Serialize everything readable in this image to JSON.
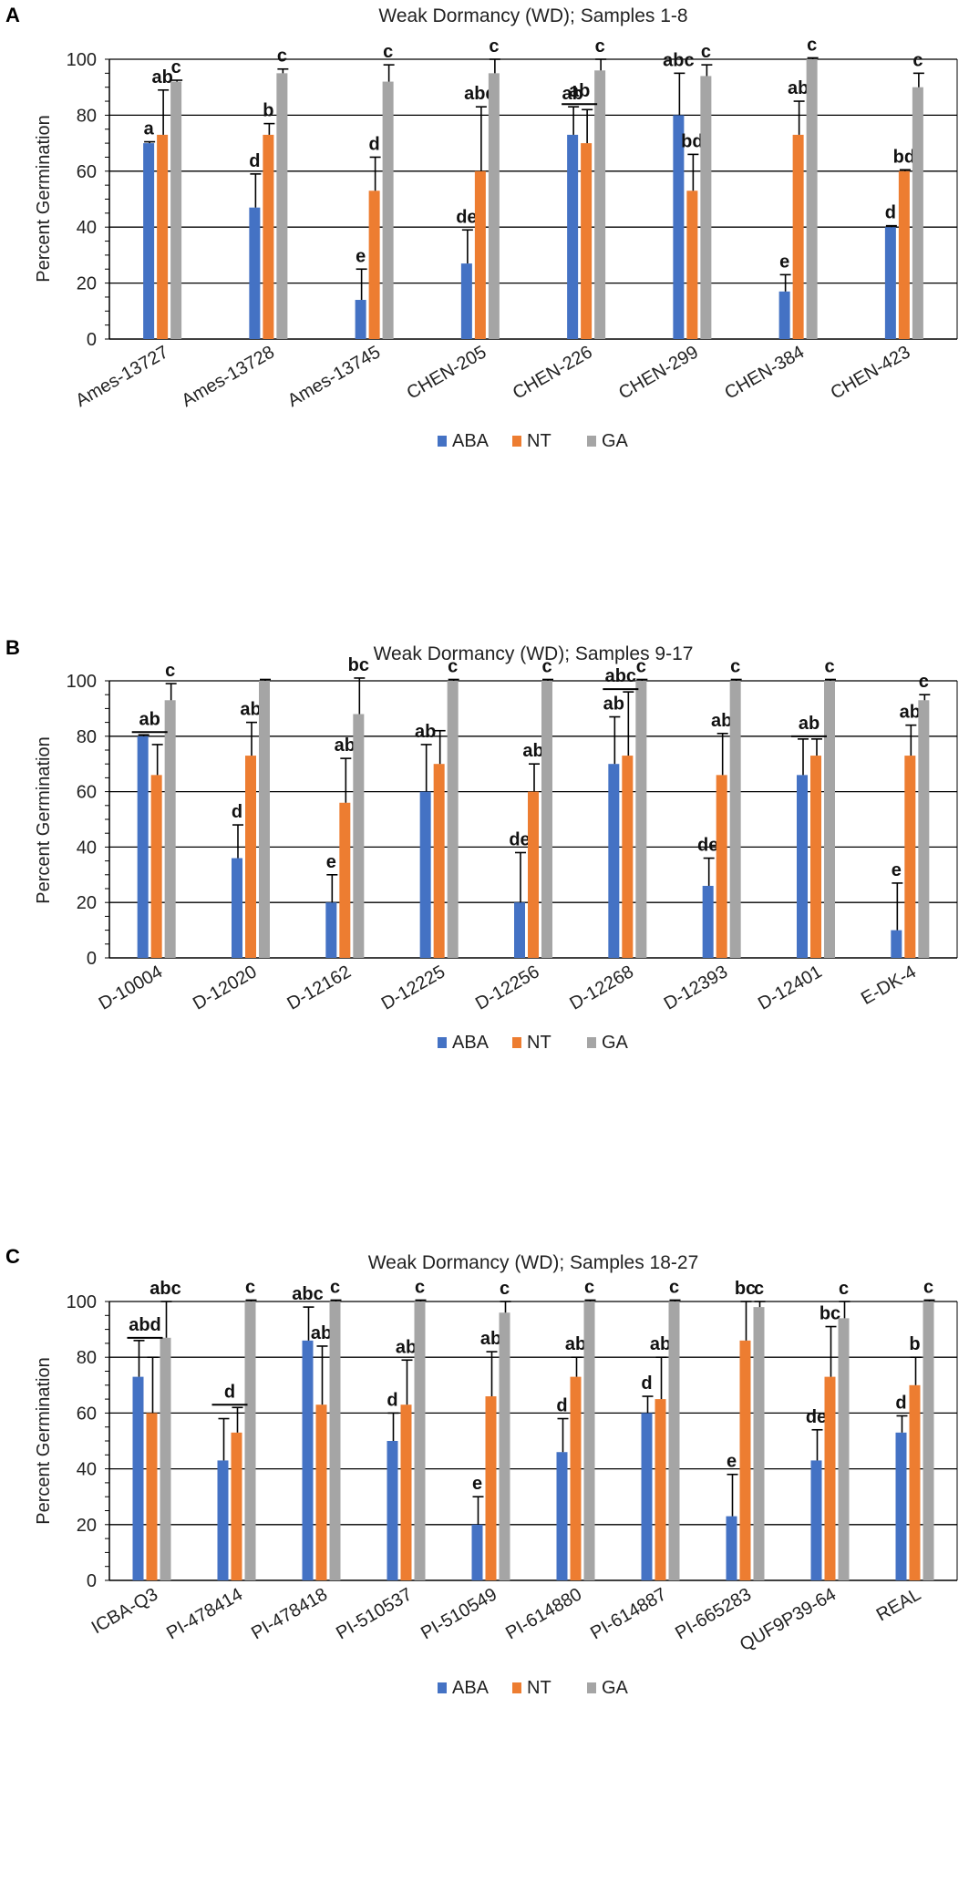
{
  "colors": {
    "ABA": "#4472c4",
    "NT": "#ed7d31",
    "GA": "#a5a5a5"
  },
  "chart_data": [
    {
      "type": "bar",
      "panel_label": "A",
      "title": "Weak Dormancy (WD); Samples 1-8",
      "xlabel": "",
      "ylabel": "Percent Germination",
      "ylim": [
        0,
        100
      ],
      "yticks": [
        0,
        20,
        40,
        60,
        80,
        100
      ],
      "grid": true,
      "legend_position": "bottom",
      "categories": [
        "Ames-13727",
        "Ames-13728",
        "Ames-13745",
        "CHEN-205",
        "CHEN-226",
        "CHEN-299",
        "CHEN-384",
        "CHEN-423"
      ],
      "series": [
        {
          "name": "ABA",
          "values": [
            70,
            47,
            14,
            27,
            73,
            80,
            17,
            40
          ],
          "errors": [
            0.5,
            12,
            11,
            12,
            10,
            15,
            6,
            0.5
          ],
          "labels": [
            "a",
            "d",
            "e",
            "de",
            "ab",
            "abc",
            "e",
            "d"
          ]
        },
        {
          "name": "NT",
          "values": [
            73,
            73,
            53,
            60,
            70,
            53,
            73,
            60
          ],
          "errors": [
            16,
            4,
            12,
            23,
            12,
            13,
            12,
            0.5
          ],
          "labels": [
            "ab",
            "b",
            "d",
            "abd",
            "",
            "bd",
            "ab",
            "bd"
          ]
        },
        {
          "name": "GA",
          "values": [
            92,
            95,
            92,
            95,
            96,
            94,
            100,
            90
          ],
          "errors": [
            0.5,
            1.5,
            6,
            5,
            4,
            4,
            0.5,
            5
          ],
          "labels": [
            "c",
            "c",
            "c",
            "c",
            "c",
            "c",
            "c",
            "c"
          ]
        }
      ],
      "spans": [
        {
          "category_index": 4,
          "label": "ab"
        }
      ]
    },
    {
      "type": "bar",
      "panel_label": "B",
      "title": "Weak Dormancy (WD); Samples 9-17",
      "xlabel": "",
      "ylabel": "Percent Germination",
      "ylim": [
        0,
        100
      ],
      "yticks": [
        0,
        20,
        40,
        60,
        80,
        100
      ],
      "grid": true,
      "legend_position": "bottom",
      "categories": [
        "D-10004",
        "D-12020",
        "D-12162",
        "D-12225",
        "D-12256",
        "D-12268",
        "D-12393",
        "D-12401",
        "E-DK-4"
      ],
      "series": [
        {
          "name": "ABA",
          "values": [
            80,
            36,
            20,
            60,
            20,
            70,
            26,
            66,
            10
          ],
          "errors": [
            0.5,
            12,
            10,
            17,
            18,
            17,
            10,
            13,
            17
          ],
          "labels": [
            "",
            "d",
            "e",
            "ab",
            "de",
            "ab",
            "de",
            "",
            "e"
          ]
        },
        {
          "name": "NT",
          "values": [
            66,
            73,
            56,
            70,
            60,
            73,
            66,
            73,
            73
          ],
          "errors": [
            11,
            12,
            16,
            12,
            10,
            23,
            15,
            6,
            11
          ],
          "labels": [
            "",
            "ab",
            "ab",
            "",
            "ab",
            "",
            "ab",
            "",
            "ab"
          ]
        },
        {
          "name": "GA",
          "values": [
            93,
            100,
            88,
            100,
            100,
            100,
            100,
            100,
            93
          ],
          "errors": [
            6,
            0.5,
            13,
            0.5,
            0.5,
            0.5,
            0.5,
            0.5,
            2
          ],
          "labels": [
            "c",
            "",
            "bc",
            "c",
            "c",
            "c",
            "c",
            "c",
            "c"
          ]
        }
      ],
      "spans": [
        {
          "category_index": 0,
          "label": "ab"
        },
        {
          "category_index": 5,
          "label": "abc"
        },
        {
          "category_index": 7,
          "label": "ab"
        }
      ]
    },
    {
      "type": "bar",
      "panel_label": "C",
      "title": "Weak Dormancy (WD); Samples 18-27",
      "xlabel": "",
      "ylabel": "Percent Germination",
      "ylim": [
        0,
        100
      ],
      "yticks": [
        0,
        20,
        40,
        60,
        80,
        100
      ],
      "grid": true,
      "legend_position": "bottom",
      "categories": [
        "ICBA-Q3",
        "PI-478414",
        "PI-478418",
        "PI-510537",
        "PI-510549",
        "PI-614880",
        "PI-614887",
        "PI-665283",
        "QUF9P39-64",
        "REAL"
      ],
      "series": [
        {
          "name": "ABA",
          "values": [
            73,
            43,
            86,
            50,
            20,
            46,
            60,
            23,
            43,
            53
          ],
          "errors": [
            13,
            15,
            12,
            10,
            10,
            12,
            6,
            15,
            11,
            6
          ],
          "labels": [
            "",
            "",
            "abc",
            "d",
            "e",
            "d",
            "d",
            "e",
            "de",
            "d"
          ]
        },
        {
          "name": "NT",
          "values": [
            60,
            53,
            63,
            63,
            66,
            73,
            65,
            86,
            73,
            70
          ],
          "errors": [
            20,
            9,
            21,
            16,
            16,
            7,
            15,
            14,
            18,
            10
          ],
          "labels": [
            "",
            "",
            "ab",
            "ab",
            "ab",
            "ab",
            "ab",
            "bc",
            "bc",
            "b"
          ]
        },
        {
          "name": "GA",
          "values": [
            87,
            100,
            100,
            100,
            96,
            100,
            100,
            98,
            94,
            100
          ],
          "errors": [
            13,
            0.5,
            0.5,
            0.5,
            4,
            0.5,
            0.5,
            2,
            6,
            0.5
          ],
          "labels": [
            "abc",
            "c",
            "c",
            "c",
            "c",
            "c",
            "c",
            "c",
            "c",
            "c"
          ]
        }
      ],
      "spans": [
        {
          "category_index": 0,
          "label": "abd"
        },
        {
          "category_index": 1,
          "label": "d"
        }
      ]
    }
  ]
}
